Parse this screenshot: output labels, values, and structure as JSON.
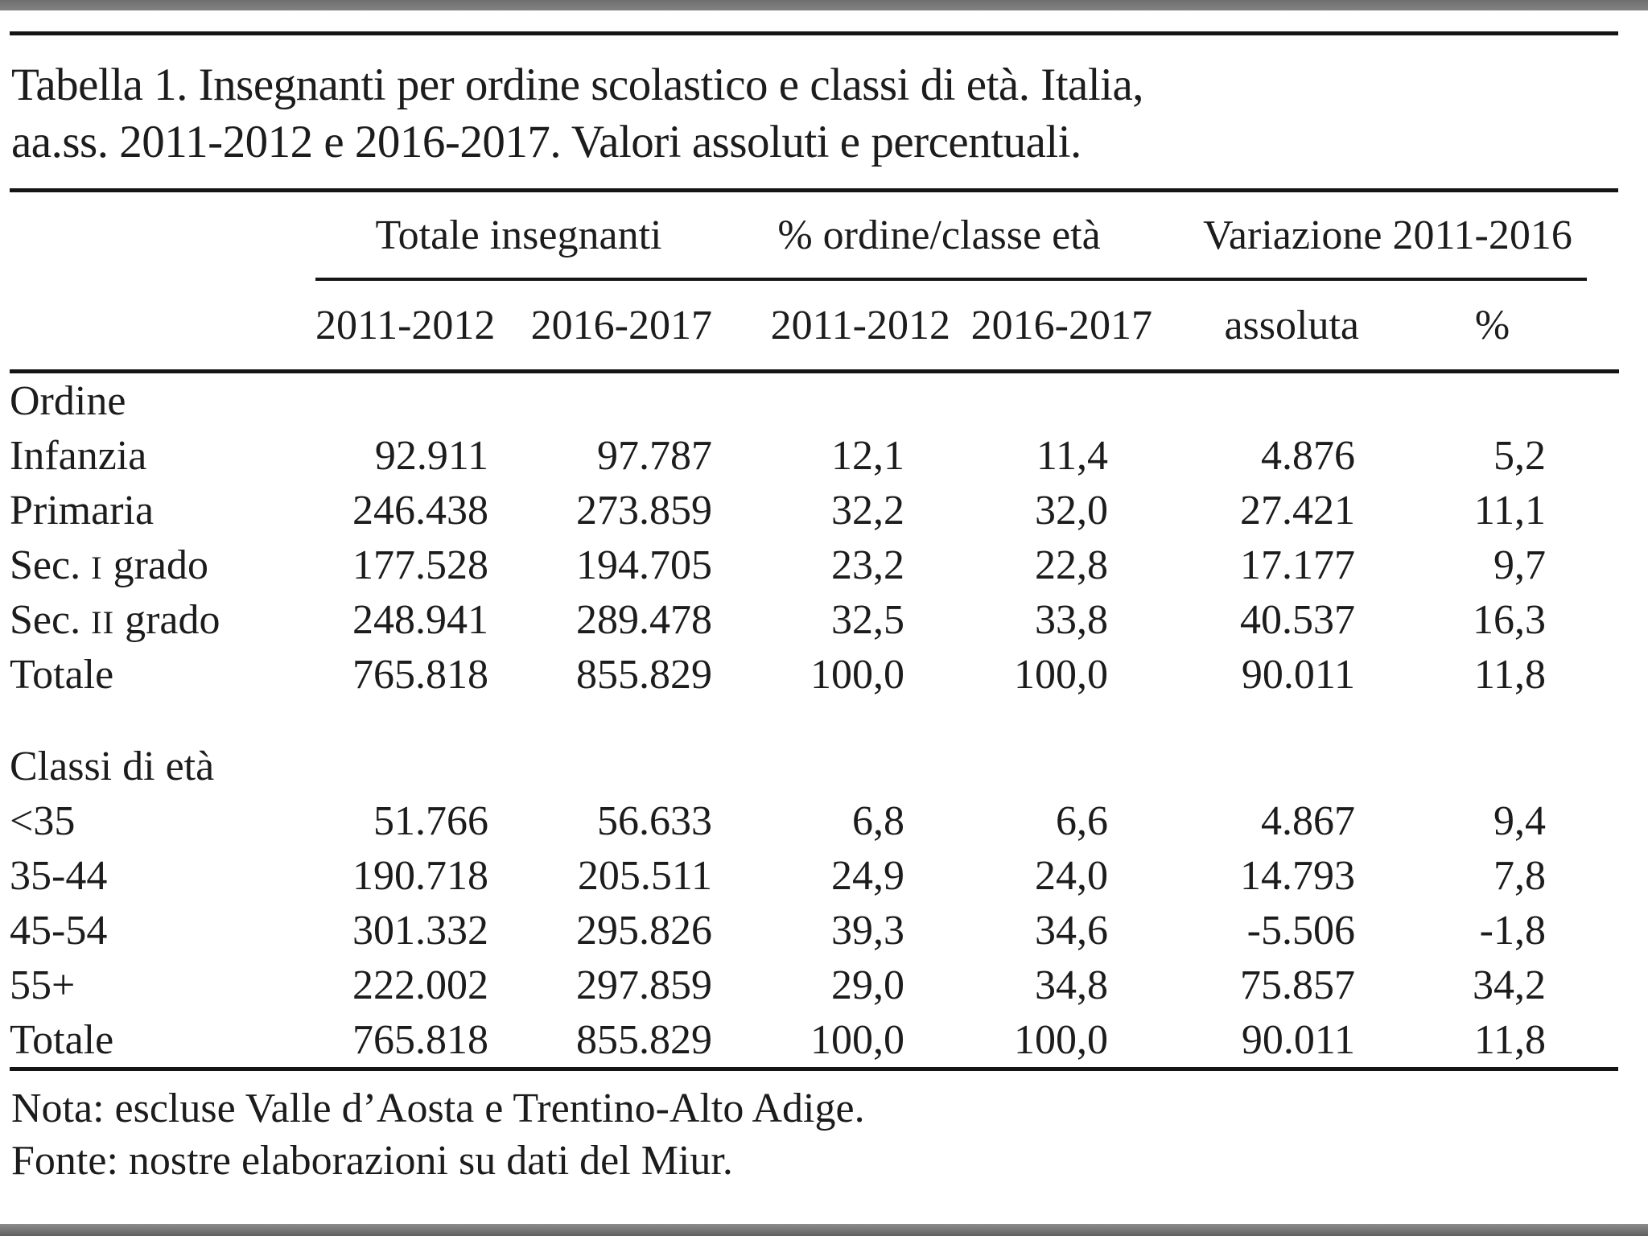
{
  "window": {
    "top_bar_color": "#7b7b7b",
    "bottom_bar_color": "#6f6f6f",
    "page_background": "#ffffff",
    "rule_color": "#151515",
    "text_color": "#1c1c1c"
  },
  "title": {
    "line1": "Tabella 1. Insegnanti per ordine scolastico e classi di età. Italia,",
    "line2": "aa.ss. 2011-2012 e 2016-2017. Valori assoluti e percentuali."
  },
  "table": {
    "col_groups": [
      {
        "label": "Totale insegnanti",
        "span": 2
      },
      {
        "label": "% ordine/classe età",
        "span": 2
      },
      {
        "label": "Variazione 2011-2016",
        "span": 2
      }
    ],
    "sub_headers": [
      "2011-2012",
      "2016-2017",
      "2011-2012",
      "2016-2017",
      "assoluta",
      "%"
    ],
    "sections": [
      {
        "name": "Ordine",
        "rows": [
          {
            "label": "Infanzia",
            "values": [
              "92.911",
              "97.787",
              "12,1",
              "11,4",
              "4.876",
              "5,2"
            ]
          },
          {
            "label": "Primaria",
            "values": [
              "246.438",
              "273.859",
              "32,2",
              "32,0",
              "27.421",
              "11,1"
            ]
          },
          {
            "label": "Sec. I grado",
            "values": [
              "177.528",
              "194.705",
              "23,2",
              "22,8",
              "17.177",
              "9,7"
            ]
          },
          {
            "label": "Sec. II grado",
            "values": [
              "248.941",
              "289.478",
              "32,5",
              "33,8",
              "40.537",
              "16,3"
            ]
          },
          {
            "label": "Totale",
            "values": [
              "765.818",
              "855.829",
              "100,0",
              "100,0",
              "90.011",
              "11,8"
            ]
          }
        ]
      },
      {
        "name": "Classi di età",
        "rows": [
          {
            "label": "<35",
            "values": [
              "51.766",
              "56.633",
              "6,8",
              "6,6",
              "4.867",
              "9,4"
            ]
          },
          {
            "label": "35-44",
            "values": [
              "190.718",
              "205.511",
              "24,9",
              "24,0",
              "14.793",
              "7,8"
            ]
          },
          {
            "label": "45-54",
            "values": [
              "301.332",
              "295.826",
              "39,3",
              "34,6",
              "-5.506",
              "-1,8"
            ]
          },
          {
            "label": "55+",
            "values": [
              "222.002",
              "297.859",
              "29,0",
              "34,8",
              "75.857",
              "34,2"
            ]
          },
          {
            "label": "Totale",
            "values": [
              "765.818",
              "855.829",
              "100,0",
              "100,0",
              "90.011",
              "11,8"
            ]
          }
        ]
      }
    ]
  },
  "notes": {
    "nota": "Nota: escluse Valle d’Aosta e Trentino-Alto Adige.",
    "fonte": "Fonte: nostre elaborazioni su dati del Miur."
  }
}
